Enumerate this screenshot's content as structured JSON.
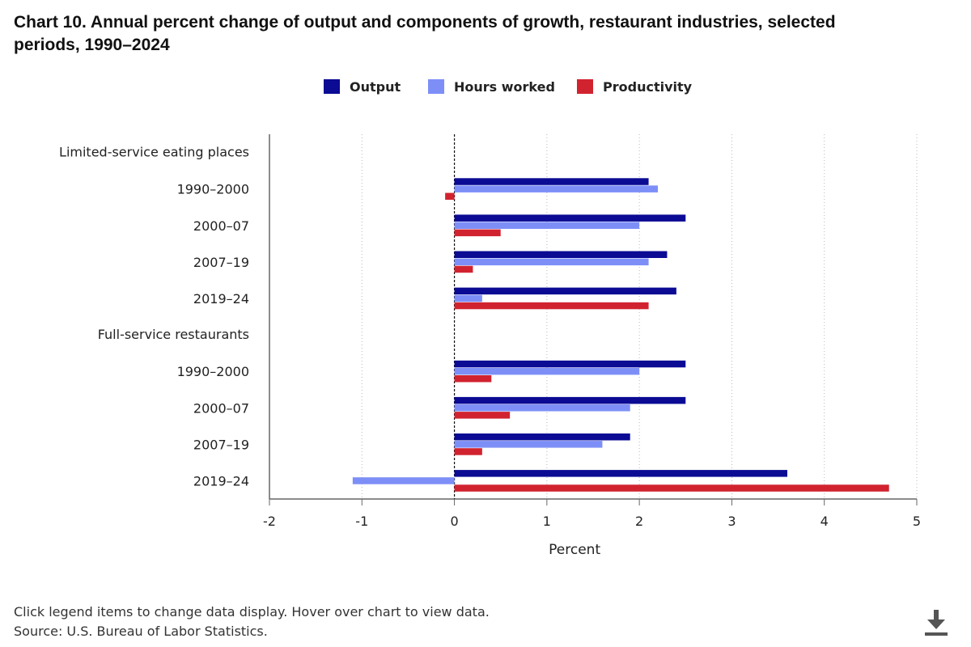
{
  "title": "Chart 10. Annual percent change of output and components of growth, restaurant industries, selected periods, 1990–2024",
  "footer": {
    "note": "Click legend items to change data display. Hover over chart to view data.",
    "source": "Source: U.S. Bureau of Labor Statistics."
  },
  "download": {
    "icon": "download-icon"
  },
  "chart_data": {
    "type": "bar",
    "orientation": "horizontal",
    "title": "Chart 10. Annual percent change of output and components of growth, restaurant industries, selected periods, 1990–2024",
    "xlabel": "Percent",
    "ylabel": "",
    "xlim": [
      -2,
      5
    ],
    "xticks": [
      -2,
      -1,
      0,
      1,
      2,
      3,
      4,
      5
    ],
    "grid": "vertical dotted",
    "legend_position": "top",
    "groups": [
      {
        "label": "Limited-service eating places",
        "categories": [
          "1990–2000",
          "2000–07",
          "2007–19",
          "2019–24"
        ]
      },
      {
        "label": "Full-service restaurants",
        "categories": [
          "1990–2000",
          "2000–07",
          "2007–19",
          "2019–24"
        ]
      }
    ],
    "series": [
      {
        "name": "Output",
        "color": "#0b0b94",
        "values": [
          2.1,
          2.5,
          2.3,
          2.4,
          2.5,
          2.5,
          1.9,
          3.6
        ]
      },
      {
        "name": "Hours worked",
        "color": "#7d8ff7",
        "values": [
          2.2,
          2.0,
          2.1,
          0.3,
          2.0,
          1.9,
          1.6,
          -1.1
        ]
      },
      {
        "name": "Productivity",
        "color": "#d1232f",
        "values": [
          -0.1,
          0.5,
          0.2,
          2.1,
          0.4,
          0.6,
          0.3,
          4.7
        ]
      }
    ]
  }
}
